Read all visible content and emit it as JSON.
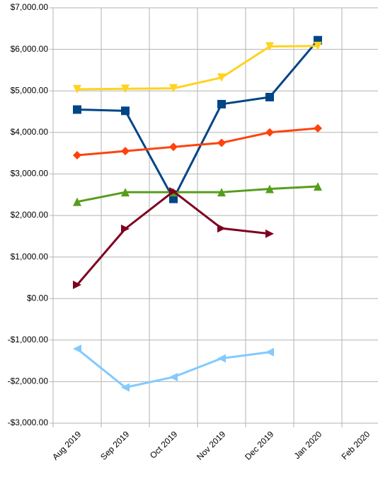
{
  "chart_data": {
    "type": "line",
    "categories": [
      "Aug 2019",
      "Sep 2019",
      "Oct 2019",
      "Nov 2019",
      "Dec 2019",
      "Jan 2020",
      "Feb 2020"
    ],
    "series": [
      {
        "color": "#004586",
        "marker": "square",
        "values": [
          4550,
          4520,
          2400,
          4680,
          4850,
          6220,
          null
        ]
      },
      {
        "color": "#ff420e",
        "marker": "diamond",
        "values": [
          3450,
          3550,
          3650,
          3750,
          4000,
          4100,
          null
        ]
      },
      {
        "color": "#ffd320",
        "marker": "triangle-down",
        "values": [
          5040,
          5050,
          5060,
          5320,
          6070,
          6080,
          null
        ]
      },
      {
        "color": "#579d1c",
        "marker": "triangle-up",
        "values": [
          2330,
          2560,
          2560,
          2560,
          2640,
          2700,
          null
        ]
      },
      {
        "color": "#7e0021",
        "marker": "triangle-right",
        "values": [
          330,
          1680,
          2580,
          1690,
          1560,
          null,
          null
        ]
      },
      {
        "color": "#83caff",
        "marker": "triangle-left",
        "values": [
          -1210,
          -2140,
          -1890,
          -1440,
          -1290,
          null,
          null
        ]
      }
    ],
    "ylim": [
      -3000,
      7000
    ],
    "yticks": [
      {
        "value": 7000,
        "label": "$7,000.00"
      },
      {
        "value": 6000,
        "label": "$6,000.00"
      },
      {
        "value": 5000,
        "label": "$5,000.00"
      },
      {
        "value": 4000,
        "label": "$4,000.00"
      },
      {
        "value": 3000,
        "label": "$3,000.00"
      },
      {
        "value": 2000,
        "label": "$2,000.00"
      },
      {
        "value": 1000,
        "label": "$1,000.00"
      },
      {
        "value": 0,
        "label": "$0.00"
      },
      {
        "value": -1000,
        "label": "-$1,000.00"
      },
      {
        "value": -2000,
        "label": "-$2,000.00"
      },
      {
        "value": -3000,
        "label": "-$3,000.00"
      }
    ],
    "negative_tick_color": "#ff0000",
    "grid": true
  }
}
